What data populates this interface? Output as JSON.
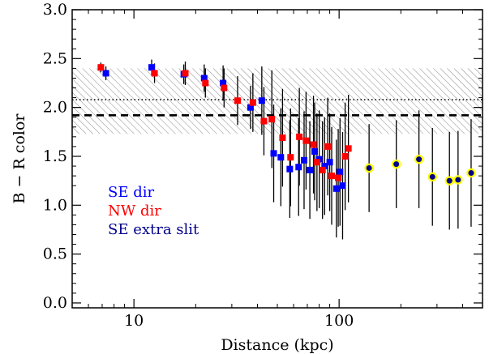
{
  "chart_data": {
    "type": "scatter",
    "title": "",
    "xlabel": "Distance (kpc)",
    "ylabel": "B − R color",
    "xscale": "log",
    "xlim": [
      5,
      500
    ],
    "ylim": [
      -0.05,
      3.0
    ],
    "xticks_major": [
      10,
      100
    ],
    "xtick_labels": [
      "10",
      "100"
    ],
    "yticks": [
      0.0,
      0.5,
      1.0,
      1.5,
      2.0,
      2.5,
      3.0
    ],
    "ytick_labels": [
      "0.0",
      "0.5",
      "1.0",
      "1.5",
      "2.0",
      "2.5",
      "3.0"
    ],
    "grid": false,
    "legend_position": "left-middle",
    "reference_band": {
      "y_low": 1.73,
      "y_high": 2.4,
      "pattern": "hatched"
    },
    "reference_lines": [
      {
        "y": 2.08,
        "style": "dotted"
      },
      {
        "y": 1.92,
        "style": "dashed"
      }
    ],
    "series": [
      {
        "name": "SE dir",
        "color": "#0000ff",
        "marker": "square",
        "points": [
          {
            "x": 7.3,
            "y": 2.35,
            "err": 0.07
          },
          {
            "x": 12.2,
            "y": 2.41,
            "err": 0.08
          },
          {
            "x": 17.5,
            "y": 2.34,
            "err": 0.1
          },
          {
            "x": 22.0,
            "y": 2.3,
            "err": 0.14
          },
          {
            "x": 27.2,
            "y": 2.25,
            "err": 0.18
          },
          {
            "x": 37.0,
            "y": 2.0,
            "err": 0.22
          },
          {
            "x": 42.0,
            "y": 2.07,
            "err": 0.35
          },
          {
            "x": 48.0,
            "y": 1.53,
            "err": 0.5
          },
          {
            "x": 52.0,
            "y": 1.49,
            "err": 0.5
          },
          {
            "x": 57.5,
            "y": 1.37,
            "err": 0.5
          },
          {
            "x": 63.5,
            "y": 1.39,
            "err": 0.5
          },
          {
            "x": 67.5,
            "y": 1.46,
            "err": 0.5
          },
          {
            "x": 72.0,
            "y": 1.36,
            "err": 0.5
          },
          {
            "x": 76.0,
            "y": 1.55,
            "err": 0.5
          },
          {
            "x": 80.0,
            "y": 1.47,
            "err": 0.5
          },
          {
            "x": 85.0,
            "y": 1.4,
            "err": 0.5
          },
          {
            "x": 90.0,
            "y": 1.44,
            "err": 0.5
          },
          {
            "x": 97.0,
            "y": 1.17,
            "err": 0.5
          },
          {
            "x": 101.0,
            "y": 1.34,
            "err": 0.55
          },
          {
            "x": 104.0,
            "y": 1.2,
            "err": 0.55
          }
        ]
      },
      {
        "name": "NW dir",
        "color": "#ff0000",
        "marker": "square",
        "points": [
          {
            "x": 6.9,
            "y": 2.41,
            "err": 0.05
          },
          {
            "x": 12.6,
            "y": 2.35,
            "err": 0.1
          },
          {
            "x": 17.8,
            "y": 2.35,
            "err": 0.12
          },
          {
            "x": 22.3,
            "y": 2.25,
            "err": 0.15
          },
          {
            "x": 27.5,
            "y": 2.2,
            "err": 0.2
          },
          {
            "x": 32.0,
            "y": 2.07,
            "err": 0.25
          },
          {
            "x": 38.0,
            "y": 2.05,
            "err": 0.3
          },
          {
            "x": 43.0,
            "y": 1.86,
            "err": 0.35
          },
          {
            "x": 47.0,
            "y": 1.88,
            "err": 0.5
          },
          {
            "x": 53.0,
            "y": 1.69,
            "err": 0.5
          },
          {
            "x": 58.0,
            "y": 1.49,
            "err": 0.5
          },
          {
            "x": 64.0,
            "y": 1.7,
            "err": 0.5
          },
          {
            "x": 69.0,
            "y": 1.66,
            "err": 0.5
          },
          {
            "x": 75.0,
            "y": 1.62,
            "err": 0.5
          },
          {
            "x": 78.0,
            "y": 1.44,
            "err": 0.5
          },
          {
            "x": 83.0,
            "y": 1.36,
            "err": 0.5
          },
          {
            "x": 88.0,
            "y": 1.6,
            "err": 0.5
          },
          {
            "x": 92.0,
            "y": 1.3,
            "err": 0.5
          },
          {
            "x": 99.0,
            "y": 1.28,
            "err": 0.5
          },
          {
            "x": 107.0,
            "y": 1.5,
            "err": 0.55
          },
          {
            "x": 111.0,
            "y": 1.58,
            "err": 0.55
          }
        ]
      },
      {
        "name": "SE extra slit",
        "color": "#00008b",
        "edge_color": "#ffff00",
        "marker": "circle",
        "points": [
          {
            "x": 140,
            "y": 1.38,
            "err": 0.45
          },
          {
            "x": 190,
            "y": 1.42,
            "err": 0.45
          },
          {
            "x": 245,
            "y": 1.47,
            "err": 0.5
          },
          {
            "x": 285,
            "y": 1.29,
            "err": 0.5
          },
          {
            "x": 345,
            "y": 1.25,
            "err": 0.5
          },
          {
            "x": 380,
            "y": 1.26,
            "err": 0.5
          },
          {
            "x": 440,
            "y": 1.33,
            "err": 0.55
          }
        ]
      }
    ]
  }
}
